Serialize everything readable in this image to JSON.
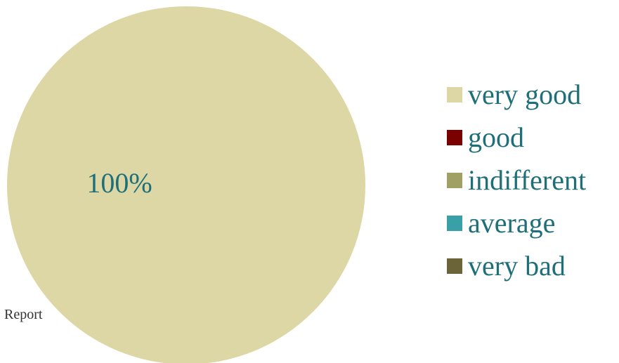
{
  "chart_data": {
    "type": "pie",
    "title": "",
    "categories": [
      "very good",
      "good",
      "indifferent",
      "average",
      "very bad"
    ],
    "values": [
      100,
      0,
      0,
      0,
      0
    ],
    "slice_labels": [
      "100%"
    ],
    "colors": [
      "#ddd7a6",
      "#7a0000",
      "#a0a064",
      "#3aa0a8",
      "#6b6438"
    ],
    "legend_position": "right",
    "annotation": "Report"
  }
}
